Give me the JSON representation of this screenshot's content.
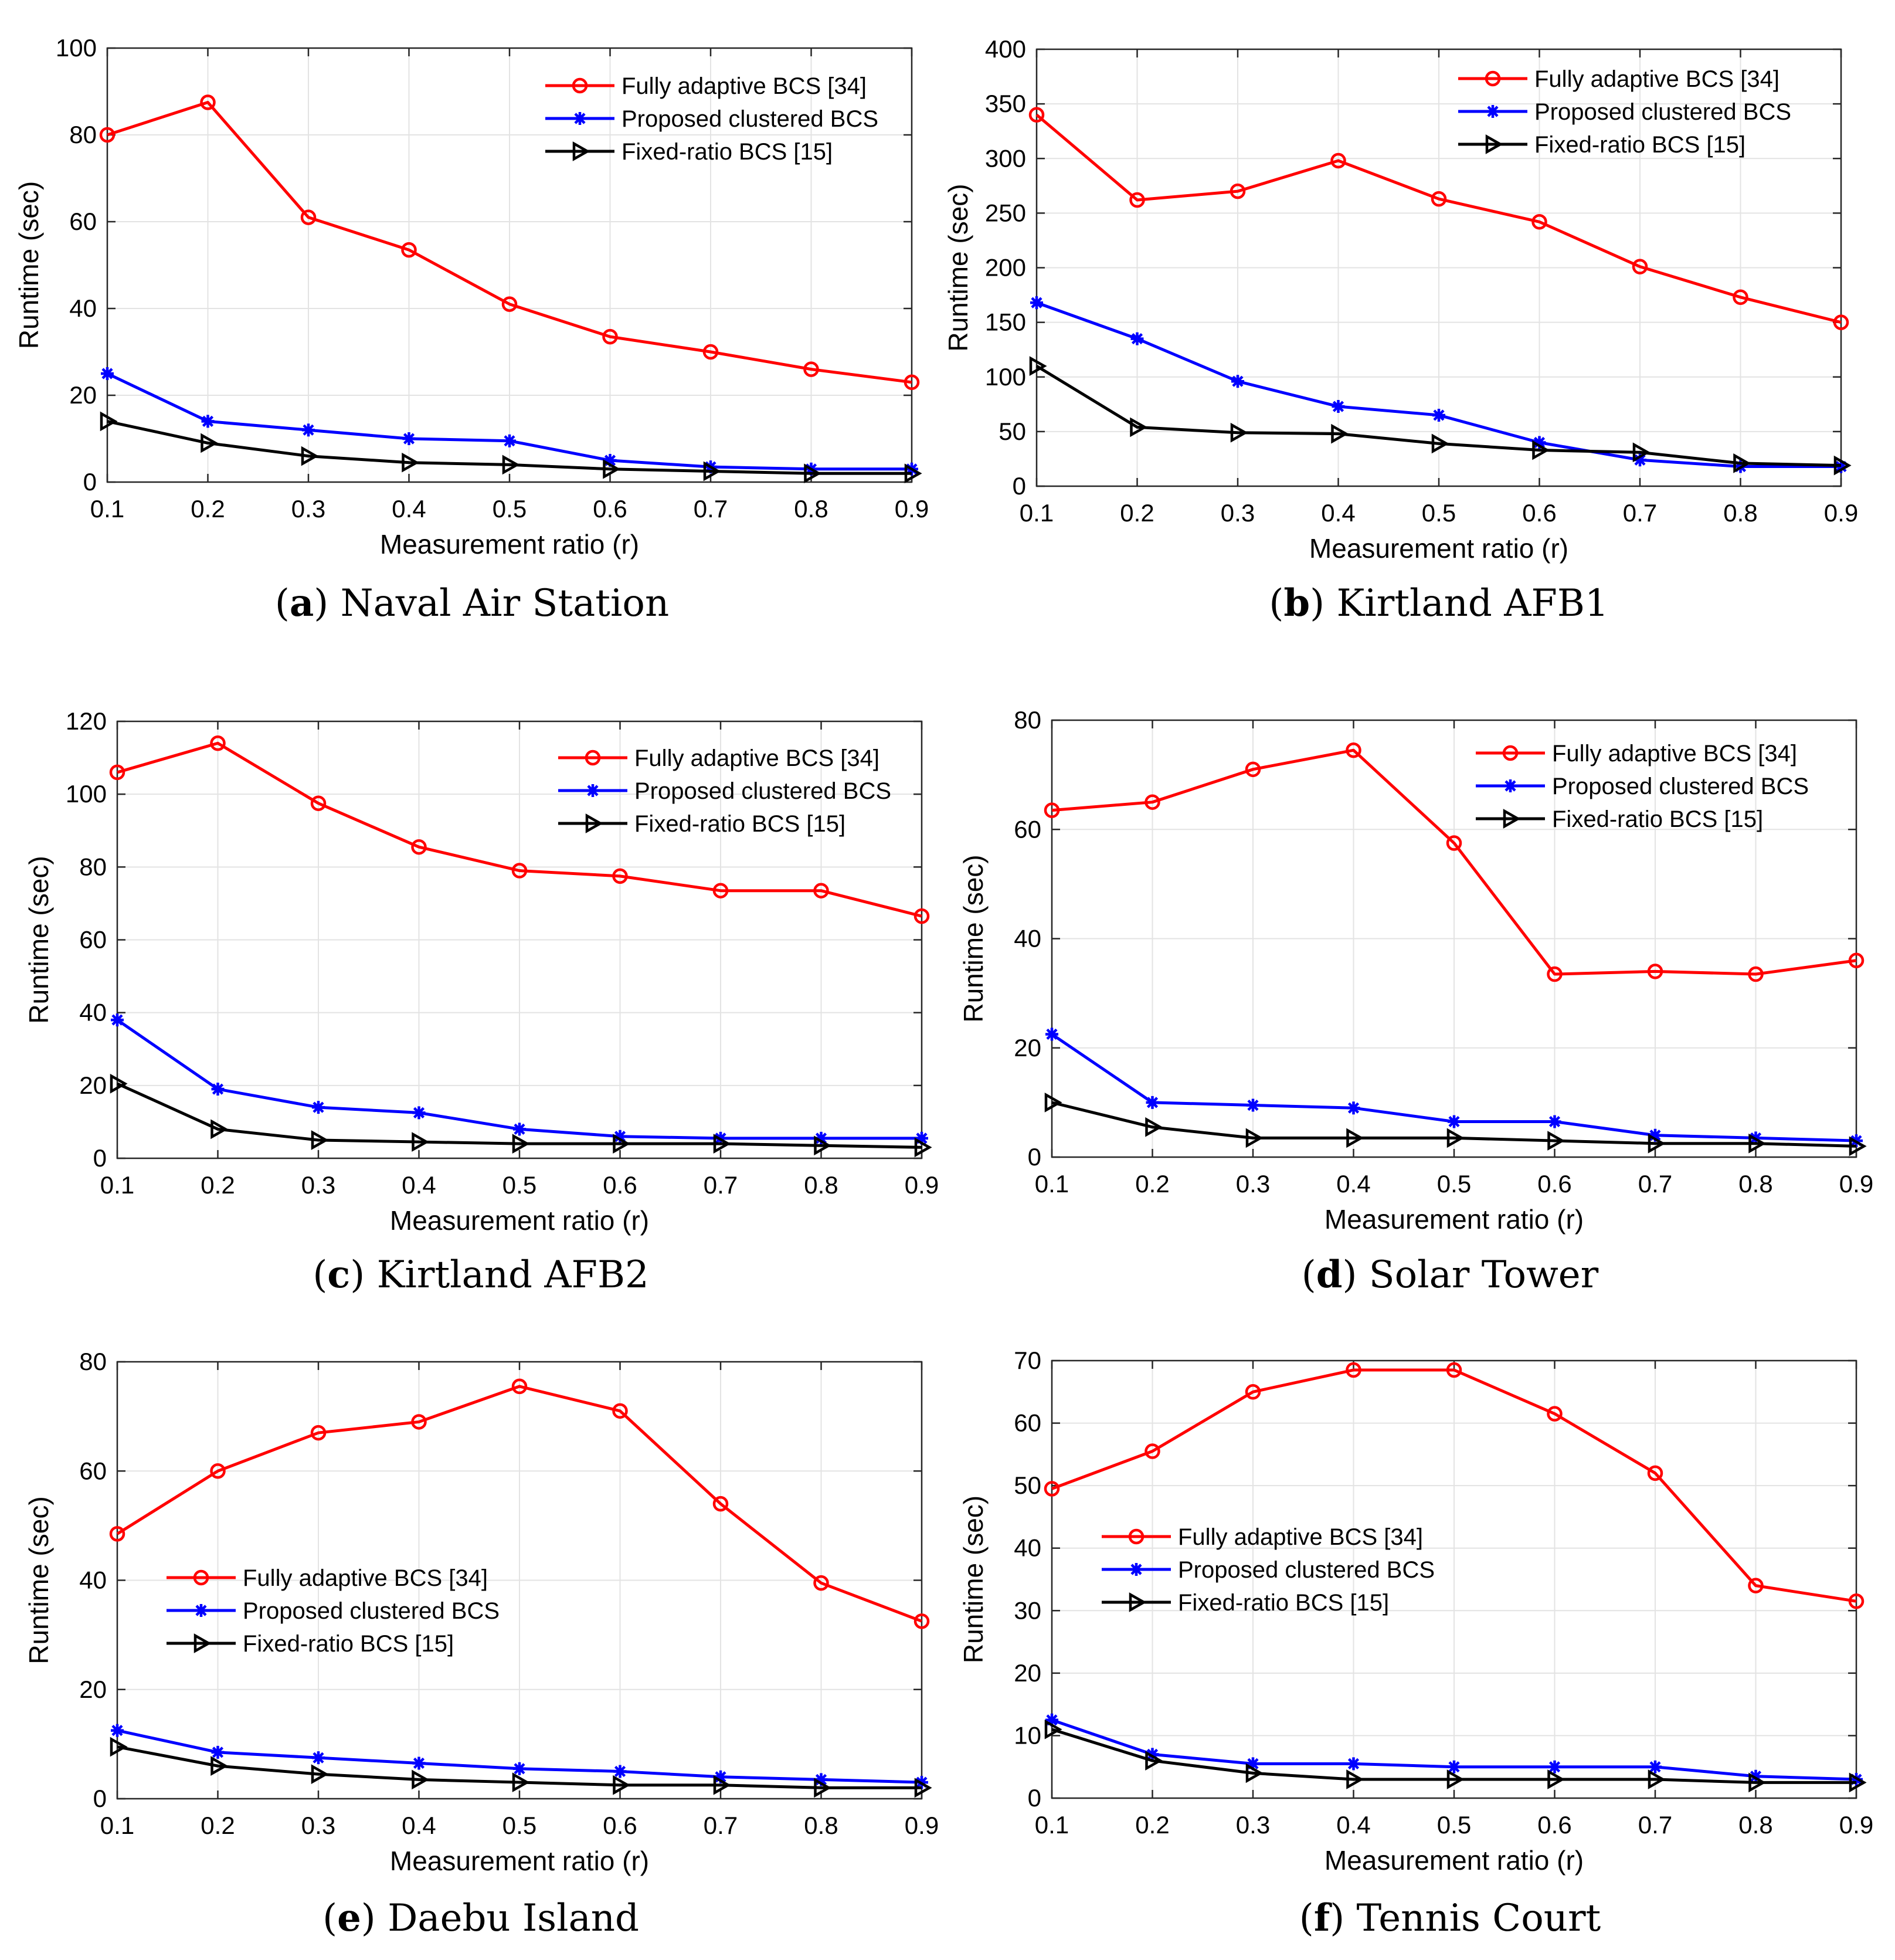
{
  "chart_data": [
    {
      "type": "line",
      "caption_label": "a",
      "caption_title": "Naval Air Station",
      "xlabel": "Measurement ratio (r)",
      "ylabel": "Runtime (sec)",
      "x": [
        0.1,
        0.2,
        0.3,
        0.4,
        0.5,
        0.6,
        0.7,
        0.8,
        0.9
      ],
      "xticks": [
        "0.1",
        "0.2",
        "0.3",
        "0.4",
        "0.5",
        "0.6",
        "0.7",
        "0.8",
        "0.9"
      ],
      "xlim": [
        0.1,
        0.9
      ],
      "ylim": [
        0,
        100
      ],
      "yticks": [
        0,
        20,
        40,
        60,
        80,
        100
      ],
      "grid": true,
      "legend_position": "top-right",
      "series": [
        {
          "name": "Fully adaptive BCS [34]",
          "color": "#ff0000",
          "marker": "circle",
          "values": [
            80,
            87.5,
            61,
            53.5,
            41,
            33.5,
            30,
            26,
            23
          ]
        },
        {
          "name": "Proposed clustered BCS",
          "color": "#0000ff",
          "marker": "asterisk",
          "values": [
            25,
            14,
            12,
            10,
            9.5,
            5,
            3.5,
            3,
            3
          ]
        },
        {
          "name": "Fixed-ratio BCS [15]",
          "color": "#000000",
          "marker": "triangle-right",
          "values": [
            14,
            9,
            6,
            4.5,
            4,
            3,
            2.5,
            2,
            2
          ]
        }
      ]
    },
    {
      "type": "line",
      "caption_label": "b",
      "caption_title": "Kirtland AFB1",
      "xlabel": "Measurement ratio (r)",
      "ylabel": "Runtime (sec)",
      "x": [
        0.1,
        0.2,
        0.3,
        0.4,
        0.5,
        0.6,
        0.7,
        0.8,
        0.9
      ],
      "xticks": [
        "0.1",
        "0.2",
        "0.3",
        "0.4",
        "0.5",
        "0.6",
        "0.7",
        "0.8",
        "0.9"
      ],
      "xlim": [
        0.1,
        0.9
      ],
      "ylim": [
        0,
        400
      ],
      "yticks": [
        0,
        50,
        100,
        150,
        200,
        250,
        300,
        350,
        400
      ],
      "grid": true,
      "legend_position": "top-right",
      "series": [
        {
          "name": "Fully adaptive BCS [34]",
          "color": "#ff0000",
          "marker": "circle",
          "values": [
            340,
            262,
            270,
            298,
            263,
            242,
            201,
            173,
            150
          ]
        },
        {
          "name": "Proposed clustered BCS",
          "color": "#0000ff",
          "marker": "asterisk",
          "values": [
            168,
            135,
            96,
            73,
            65,
            40,
            24,
            18,
            18
          ]
        },
        {
          "name": "Fixed-ratio BCS [15]",
          "color": "#000000",
          "marker": "triangle-right",
          "values": [
            110,
            54,
            49,
            48,
            39,
            33,
            31,
            21,
            19
          ]
        }
      ]
    },
    {
      "type": "line",
      "caption_label": "c",
      "caption_title": "Kirtland AFB2",
      "xlabel": "Measurement ratio (r)",
      "ylabel": "Runtime (sec)",
      "x": [
        0.1,
        0.2,
        0.3,
        0.4,
        0.5,
        0.6,
        0.7,
        0.8,
        0.9
      ],
      "xticks": [
        "0.1",
        "0.2",
        "0.3",
        "0.4",
        "0.5",
        "0.6",
        "0.7",
        "0.8",
        "0.9"
      ],
      "xlim": [
        0.1,
        0.9
      ],
      "ylim": [
        0,
        120
      ],
      "yticks": [
        0,
        20,
        40,
        60,
        80,
        100,
        120
      ],
      "grid": true,
      "legend_position": "top-right",
      "series": [
        {
          "name": "Fully adaptive BCS [34]",
          "color": "#ff0000",
          "marker": "circle",
          "values": [
            106,
            114,
            97.5,
            85.5,
            79,
            77.5,
            73.5,
            73.5,
            66.5
          ]
        },
        {
          "name": "Proposed clustered BCS",
          "color": "#0000ff",
          "marker": "asterisk",
          "values": [
            38,
            19,
            14,
            12.5,
            8,
            6,
            5.5,
            5.5,
            5.5
          ]
        },
        {
          "name": "Fixed-ratio BCS [15]",
          "color": "#000000",
          "marker": "triangle-right",
          "values": [
            20.5,
            8,
            5,
            4.5,
            4,
            4,
            4,
            3.5,
            3
          ]
        }
      ]
    },
    {
      "type": "line",
      "caption_label": "d",
      "caption_title": "Solar Tower",
      "xlabel": "Measurement ratio (r)",
      "ylabel": "Runtime (sec)",
      "x": [
        0.1,
        0.2,
        0.3,
        0.4,
        0.5,
        0.6,
        0.7,
        0.8,
        0.9
      ],
      "xticks": [
        "0.1",
        "0.2",
        "0.3",
        "0.4",
        "0.5",
        "0.6",
        "0.7",
        "0.8",
        "0.9"
      ],
      "xlim": [
        0.1,
        0.9
      ],
      "ylim": [
        0,
        80
      ],
      "yticks": [
        0,
        20,
        40,
        60,
        80
      ],
      "grid": true,
      "legend_position": "top-right",
      "series": [
        {
          "name": "Fully adaptive BCS [34]",
          "color": "#ff0000",
          "marker": "circle",
          "values": [
            63.5,
            65,
            71,
            74.5,
            57.5,
            33.5,
            34,
            33.5,
            36
          ]
        },
        {
          "name": "Proposed clustered BCS",
          "color": "#0000ff",
          "marker": "asterisk",
          "values": [
            22.5,
            10,
            9.5,
            9,
            6.5,
            6.5,
            4,
            3.5,
            3
          ]
        },
        {
          "name": "Fixed-ratio BCS [15]",
          "color": "#000000",
          "marker": "triangle-right",
          "values": [
            10,
            5.5,
            3.5,
            3.5,
            3.5,
            3,
            2.5,
            2.5,
            2
          ]
        }
      ]
    },
    {
      "type": "line",
      "caption_label": "e",
      "caption_title": "Daebu Island",
      "xlabel": "Measurement ratio (r)",
      "ylabel": "Runtime (sec)",
      "x": [
        0.1,
        0.2,
        0.3,
        0.4,
        0.5,
        0.6,
        0.7,
        0.8,
        0.9
      ],
      "xticks": [
        "0.1",
        "0.2",
        "0.3",
        "0.4",
        "0.5",
        "0.6",
        "0.7",
        "0.8",
        "0.9"
      ],
      "xlim": [
        0.1,
        0.9
      ],
      "ylim": [
        0,
        80
      ],
      "yticks": [
        0,
        20,
        40,
        60,
        80
      ],
      "grid": true,
      "legend_position": "middle-left",
      "series": [
        {
          "name": "Fully adaptive BCS [34]",
          "color": "#ff0000",
          "marker": "circle",
          "values": [
            48.5,
            60,
            67,
            69,
            75.5,
            71,
            54,
            39.5,
            32.5
          ]
        },
        {
          "name": "Proposed clustered BCS",
          "color": "#0000ff",
          "marker": "asterisk",
          "values": [
            12.5,
            8.5,
            7.5,
            6.5,
            5.5,
            5,
            4,
            3.5,
            3
          ]
        },
        {
          "name": "Fixed-ratio BCS [15]",
          "color": "#000000",
          "marker": "triangle-right",
          "values": [
            9.5,
            6,
            4.5,
            3.5,
            3,
            2.5,
            2.5,
            2,
            2
          ]
        }
      ]
    },
    {
      "type": "line",
      "caption_label": "f",
      "caption_title": "Tennis Court",
      "xlabel": "Measurement ratio (r)",
      "ylabel": "Runtime (sec)",
      "x": [
        0.1,
        0.2,
        0.3,
        0.4,
        0.5,
        0.6,
        0.7,
        0.8,
        0.9
      ],
      "xticks": [
        "0.1",
        "0.2",
        "0.3",
        "0.4",
        "0.5",
        "0.6",
        "0.7",
        "0.8",
        "0.9"
      ],
      "xlim": [
        0.1,
        0.9
      ],
      "ylim": [
        0,
        70
      ],
      "yticks": [
        0,
        10,
        20,
        30,
        40,
        50,
        60,
        70
      ],
      "grid": true,
      "legend_position": "middle-left",
      "series": [
        {
          "name": "Fully adaptive BCS [34]",
          "color": "#ff0000",
          "marker": "circle",
          "values": [
            49.5,
            55.5,
            65,
            68.5,
            68.5,
            61.5,
            52,
            34,
            31.5
          ]
        },
        {
          "name": "Proposed clustered BCS",
          "color": "#0000ff",
          "marker": "asterisk",
          "values": [
            12.5,
            7,
            5.5,
            5.5,
            5,
            5,
            5,
            3.5,
            3
          ]
        },
        {
          "name": "Fixed-ratio BCS [15]",
          "color": "#000000",
          "marker": "triangle-right",
          "values": [
            11,
            6,
            4,
            3,
            3,
            3,
            3,
            2.5,
            2.5
          ]
        }
      ]
    }
  ]
}
